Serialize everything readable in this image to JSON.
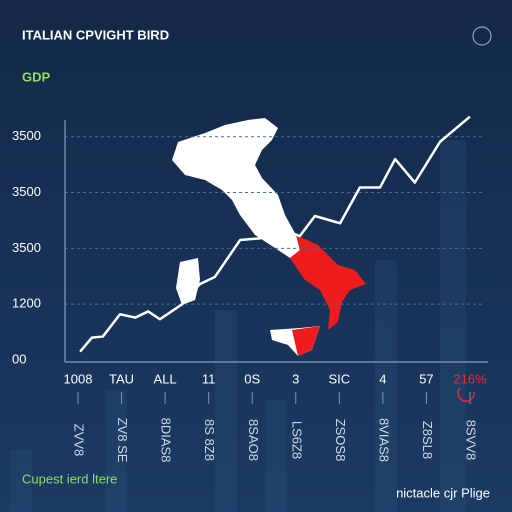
{
  "chart_data": {
    "type": "line",
    "title": "ITALIAN CPVIGHT BIRD",
    "subtitle": "GDP",
    "ytick_labels": [
      "00",
      "1200",
      "3500",
      "3500",
      "3500"
    ],
    "ylim": [
      0,
      4.3
    ],
    "yticks": [
      0,
      1,
      2,
      3,
      4
    ],
    "xlim": [
      0,
      100
    ],
    "x": [
      3.6,
      6.4,
      9.0,
      13.1,
      16.7,
      19.8,
      22.6,
      27.9,
      32.1,
      35.7,
      41.7,
      46.4,
      51.2,
      55.9,
      59.5,
      65.5,
      70.2,
      75.0,
      78.6,
      83.3,
      89.3,
      96.4
    ],
    "series": [
      {
        "color": "#ffffff",
        "values": [
          0.15,
          0.4,
          0.42,
          0.82,
          0.76,
          0.87,
          0.73,
          1.0,
          1.36,
          1.49,
          2.15,
          2.18,
          2.36,
          2.22,
          2.58,
          2.45,
          3.09,
          3.09,
          3.6,
          3.18,
          3.91,
          4.36
        ]
      }
    ],
    "categories": [
      "1008",
      "TAU",
      "ALL",
      "11",
      "0S",
      "3",
      "SIC",
      "4",
      "57",
      "216%"
    ],
    "highlight_color": "#e8282b",
    "rotated_labels": [
      "ZVV8",
      "ZV8 SE",
      "8DIAS8",
      "8S 8Z8",
      "8SAO8",
      "LS6Z8",
      "ZSOS8",
      "8VIAS8",
      "Z8SL8",
      "8SVV8"
    ],
    "footer_left": "Cupest ierd ltere",
    "footer_right": "nictacle cjr Plige",
    "grid": true
  }
}
